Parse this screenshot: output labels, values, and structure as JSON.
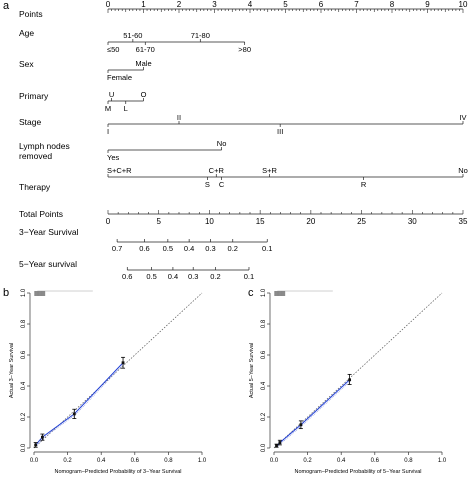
{
  "panel_labels": {
    "a": "a",
    "b": "b",
    "c": "c"
  },
  "chart_data": [
    {
      "type": "nomogram",
      "panel": "a",
      "rows": [
        {
          "label": "Points",
          "kind": "points_scale",
          "ticks": [
            0,
            1,
            2,
            3,
            4,
            5,
            6,
            7,
            8,
            9,
            10
          ]
        },
        {
          "label": "Age",
          "kind": "variable",
          "levels": [
            {
              "text": "≤50",
              "points": 0,
              "side": "below"
            },
            {
              "text": "51-60",
              "points": 0.7,
              "side": "above"
            },
            {
              "text": "61-70",
              "points": 1.05,
              "side": "below"
            },
            {
              "text": "71-80",
              "points": 2.6,
              "side": "above"
            },
            {
              "text": ">80",
              "points": 3.85,
              "side": "below"
            }
          ]
        },
        {
          "label": "Sex",
          "kind": "variable",
          "levels": [
            {
              "text": "Female",
              "points": 0,
              "side": "below"
            },
            {
              "text": "Male",
              "points": 1.0,
              "side": "above"
            }
          ]
        },
        {
          "label": "Primary",
          "kind": "variable",
          "levels": [
            {
              "text": "U",
              "points": 0.1,
              "side": "above"
            },
            {
              "text": "O",
              "points": 1.0,
              "side": "above"
            },
            {
              "text": "M",
              "points": 0,
              "side": "below"
            },
            {
              "text": "L",
              "points": 0.5,
              "side": "below"
            }
          ]
        },
        {
          "label": "Stage",
          "kind": "variable",
          "levels": [
            {
              "text": "I",
              "points": 0,
              "side": "below"
            },
            {
              "text": "II",
              "points": 2.0,
              "side": "above"
            },
            {
              "text": "III",
              "points": 4.85,
              "side": "below"
            },
            {
              "text": "IV",
              "points": 10,
              "side": "above"
            }
          ]
        },
        {
          "label": "Lymph nodes removed",
          "label_lines": [
            "Lymph nodes",
            "removed"
          ],
          "kind": "variable",
          "levels": [
            {
              "text": "Yes",
              "points": 0,
              "side": "below"
            },
            {
              "text": "No",
              "points": 3.2,
              "side": "above"
            }
          ]
        },
        {
          "label": "Therapy",
          "kind": "variable",
          "levels": [
            {
              "text": "S+C+R",
              "points": 0,
              "side": "above"
            },
            {
              "text": "S",
              "points": 2.8,
              "side": "below"
            },
            {
              "text": "C+R",
              "points": 3.05,
              "side": "above"
            },
            {
              "text": "C",
              "points": 3.2,
              "side": "below"
            },
            {
              "text": "S+R",
              "points": 4.55,
              "side": "above"
            },
            {
              "text": "R",
              "points": 7.2,
              "side": "below"
            },
            {
              "text": "No",
              "points": 10,
              "side": "above"
            }
          ]
        },
        {
          "label": "Total Points",
          "kind": "total_scale",
          "ticks": [
            0,
            5,
            10,
            15,
            20,
            25,
            30,
            35
          ],
          "max": 35
        },
        {
          "label": "3−Year Survival",
          "kind": "probability",
          "ticks": [
            {
              "text": "0.7",
              "total": 0.9
            },
            {
              "text": "0.6",
              "total": 3.6
            },
            {
              "text": "0.5",
              "total": 5.9
            },
            {
              "text": "0.4",
              "total": 8.0
            },
            {
              "text": "0.3",
              "total": 10.1
            },
            {
              "text": "0.2",
              "total": 12.3
            },
            {
              "text": "0.1",
              "total": 15.7
            }
          ]
        },
        {
          "label": "5−Year survival",
          "kind": "probability",
          "ticks": [
            {
              "text": "0.6",
              "total": 1.9
            },
            {
              "text": "0.5",
              "total": 4.3
            },
            {
              "text": "0.4",
              "total": 6.4
            },
            {
              "text": "0.3",
              "total": 8.4
            },
            {
              "text": "0.2",
              "total": 10.6
            },
            {
              "text": "0.1",
              "total": 13.9
            }
          ]
        }
      ]
    },
    {
      "type": "scatter",
      "panel": "b",
      "xlabel": "Nomogram−Predicted Probability of 3−Year Survival",
      "ylabel": "Actual 3−Year Survival",
      "xlim": [
        0,
        1
      ],
      "ylim": [
        0,
        1
      ],
      "ticks": [
        0.0,
        0.2,
        0.4,
        0.6,
        0.8,
        1.0
      ],
      "tick_labels": [
        "0.0",
        "0.2",
        "0.4",
        "0.6",
        "0.8",
        "1.0"
      ],
      "points": [
        {
          "x": 0.01,
          "y": 0.02,
          "lo": 0.005,
          "hi": 0.035
        },
        {
          "x": 0.05,
          "y": 0.07,
          "lo": 0.05,
          "hi": 0.09
        },
        {
          "x": 0.24,
          "y": 0.22,
          "lo": 0.19,
          "hi": 0.25
        },
        {
          "x": 0.53,
          "y": 0.55,
          "lo": 0.515,
          "hi": 0.585
        }
      ],
      "reference_line": true,
      "colors": {
        "fit_line": "#1f3fd6",
        "reference_line": "#555555",
        "points": "#111111"
      }
    },
    {
      "type": "scatter",
      "panel": "c",
      "xlabel": "Nomogram−Predicted Probability of 5−Year Survival",
      "ylabel": "Actual 5−Year Survival",
      "xlim": [
        0,
        1
      ],
      "ylim": [
        0,
        1
      ],
      "ticks": [
        0.0,
        0.2,
        0.4,
        0.6,
        0.8,
        1.0
      ],
      "tick_labels": [
        "0.0",
        "0.2",
        "0.4",
        "0.6",
        "0.8",
        "1.0"
      ],
      "points": [
        {
          "x": 0.015,
          "y": 0.015,
          "lo": 0.005,
          "hi": 0.025
        },
        {
          "x": 0.035,
          "y": 0.035,
          "lo": 0.02,
          "hi": 0.05
        },
        {
          "x": 0.16,
          "y": 0.15,
          "lo": 0.125,
          "hi": 0.175
        },
        {
          "x": 0.45,
          "y": 0.44,
          "lo": 0.41,
          "hi": 0.475
        }
      ],
      "reference_line": true,
      "colors": {
        "fit_line": "#1f3fd6",
        "reference_line": "#555555",
        "points": "#111111"
      }
    }
  ]
}
